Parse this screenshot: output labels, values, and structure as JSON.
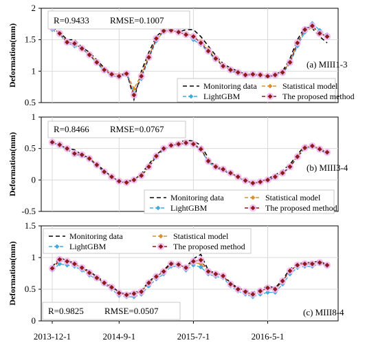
{
  "colors": {
    "monitoring": "#000000",
    "lightgbm": "#3fa9e0",
    "statistical": "#d9902a",
    "proposed": "#8b1a1a",
    "proposed_halo": "#f2b6f0",
    "grid": "#d9d9d9"
  },
  "x_axis": {
    "ticks": [
      "2013-12-1",
      "2014-9-1",
      "2015-7-1",
      "2016-5-1"
    ],
    "tick_index": [
      0,
      9,
      19,
      29
    ]
  },
  "chart_data": [
    {
      "type": "line",
      "panel_label": "(a) MIII1-3",
      "ylabel": "Deformation(mm)",
      "stats": {
        "r": "R=0.9433",
        "rmse": "RMSE=0.1007"
      },
      "ylim": [
        0.5,
        2
      ],
      "yticks": [
        "0.5",
        "1",
        "1.5",
        "2"
      ],
      "ytick_values": [
        0.5,
        1,
        1.5,
        2
      ],
      "legend": [
        "Monitoring data",
        "Statistical model",
        "LightGBM",
        "The proposed method"
      ],
      "legend_position": "bottom-right",
      "series": [
        {
          "name": "Monitoring data",
          "values": [
            1.7,
            1.62,
            1.5,
            1.5,
            1.38,
            1.3,
            1.18,
            1.05,
            0.97,
            0.9,
            1.0,
            0.55,
            1.0,
            1.3,
            1.55,
            1.66,
            1.66,
            1.62,
            1.66,
            1.66,
            1.55,
            1.4,
            1.25,
            1.12,
            1.05,
            1.0,
            0.95,
            0.92,
            0.95,
            0.88,
            0.95,
            1.0,
            1.2,
            1.5,
            1.7,
            1.68,
            1.55,
            1.45
          ]
        },
        {
          "name": "Statistical model",
          "values": [
            1.68,
            1.6,
            1.48,
            1.42,
            1.35,
            1.27,
            1.15,
            1.03,
            0.96,
            0.95,
            0.97,
            0.72,
            0.95,
            1.25,
            1.5,
            1.62,
            1.64,
            1.62,
            1.6,
            1.56,
            1.48,
            1.35,
            1.22,
            1.1,
            1.02,
            0.98,
            0.95,
            0.96,
            0.95,
            0.92,
            0.95,
            0.98,
            1.15,
            1.42,
            1.62,
            1.7,
            1.62,
            1.55
          ]
        },
        {
          "name": "LightGBM",
          "values": [
            1.66,
            1.58,
            1.45,
            1.4,
            1.36,
            1.25,
            1.13,
            1.0,
            0.93,
            0.9,
            0.95,
            0.65,
            0.88,
            1.2,
            1.48,
            1.63,
            1.65,
            1.63,
            1.58,
            1.5,
            1.42,
            1.3,
            1.18,
            1.08,
            1.0,
            0.96,
            0.93,
            0.94,
            0.93,
            0.9,
            0.93,
            0.96,
            1.12,
            1.4,
            1.62,
            1.76,
            1.65,
            1.58
          ]
        },
        {
          "name": "The proposed method",
          "values": [
            1.7,
            1.6,
            1.46,
            1.44,
            1.36,
            1.26,
            1.14,
            1.02,
            0.95,
            0.92,
            0.96,
            0.62,
            0.92,
            1.22,
            1.52,
            1.64,
            1.65,
            1.62,
            1.58,
            1.55,
            1.45,
            1.32,
            1.2,
            1.08,
            1.02,
            0.98,
            0.94,
            0.95,
            0.94,
            0.92,
            0.94,
            0.98,
            1.14,
            1.45,
            1.66,
            1.72,
            1.6,
            1.55
          ]
        }
      ]
    },
    {
      "type": "line",
      "panel_label": "(b) MIII3-4",
      "ylabel": "Deformation(mm)",
      "stats": {
        "r": "R=0.8466",
        "rmse": "RMSE=0.0767"
      },
      "ylim": [
        -0.5,
        1
      ],
      "yticks": [
        "-0.5",
        "0",
        "0.5",
        "1"
      ],
      "ytick_values": [
        -0.5,
        0,
        0.5,
        1
      ],
      "legend": [
        "Monitoring data",
        "Statistical model",
        "LightGBM",
        "The proposed method"
      ],
      "legend_position": "bottom-right",
      "series": [
        {
          "name": "Monitoring data",
          "values": [
            0.6,
            0.55,
            0.5,
            0.48,
            0.4,
            0.35,
            0.25,
            0.15,
            0.05,
            -0.05,
            -0.02,
            0.0,
            0.1,
            0.25,
            0.4,
            0.5,
            0.55,
            0.6,
            0.63,
            0.62,
            0.55,
            0.35,
            0.2,
            0.15,
            0.1,
            0.05,
            0.0,
            -0.05,
            -0.03,
            0.02,
            0.08,
            0.15,
            0.25,
            0.4,
            0.55,
            0.55,
            0.48,
            0.42
          ]
        },
        {
          "name": "Statistical model",
          "values": [
            0.6,
            0.55,
            0.5,
            0.42,
            0.4,
            0.35,
            0.25,
            0.12,
            0.05,
            -0.02,
            -0.05,
            0.0,
            0.08,
            0.22,
            0.38,
            0.5,
            0.55,
            0.58,
            0.6,
            0.58,
            0.5,
            0.3,
            0.22,
            0.18,
            0.12,
            0.05,
            0.0,
            -0.05,
            -0.03,
            0.0,
            0.05,
            0.12,
            0.22,
            0.38,
            0.52,
            0.55,
            0.5,
            0.45
          ]
        },
        {
          "name": "LightGBM",
          "values": [
            0.58,
            0.55,
            0.48,
            0.4,
            0.38,
            0.33,
            0.22,
            0.12,
            0.05,
            -0.02,
            -0.04,
            0.0,
            0.06,
            0.2,
            0.36,
            0.48,
            0.54,
            0.56,
            0.58,
            0.56,
            0.48,
            0.28,
            0.2,
            0.16,
            0.1,
            0.04,
            -0.02,
            -0.06,
            -0.04,
            -0.01,
            0.04,
            0.1,
            0.2,
            0.36,
            0.5,
            0.53,
            0.48,
            0.43
          ]
        },
        {
          "name": "The proposed method",
          "values": [
            0.6,
            0.56,
            0.5,
            0.42,
            0.4,
            0.34,
            0.24,
            0.13,
            0.05,
            -0.02,
            -0.04,
            0.0,
            0.07,
            0.21,
            0.38,
            0.5,
            0.55,
            0.57,
            0.59,
            0.57,
            0.49,
            0.3,
            0.21,
            0.17,
            0.11,
            0.05,
            -0.01,
            -0.05,
            -0.03,
            0.0,
            0.05,
            0.11,
            0.21,
            0.37,
            0.51,
            0.54,
            0.49,
            0.44
          ]
        }
      ]
    },
    {
      "type": "line",
      "panel_label": "(c) MIII8-4",
      "ylabel": "Deformation(mm)",
      "stats": {
        "r": "R=0.9825",
        "rmse": "RMSE=0.0507"
      },
      "ylim": [
        0,
        1.5
      ],
      "yticks": [
        "0",
        "0.5",
        "1",
        "1.5"
      ],
      "ytick_values": [
        0,
        0.5,
        1,
        1.5
      ],
      "legend": [
        "Monitoring data",
        "Statistical model",
        "LightGBM",
        "The proposed method"
      ],
      "legend_position": "top-left",
      "series": [
        {
          "name": "Monitoring data",
          "values": [
            0.85,
            1.0,
            0.95,
            0.92,
            0.85,
            0.78,
            0.7,
            0.62,
            0.55,
            0.45,
            0.42,
            0.45,
            0.48,
            0.62,
            0.72,
            0.8,
            0.92,
            0.9,
            0.85,
            0.98,
            1.05,
            0.8,
            0.75,
            0.72,
            0.6,
            0.52,
            0.48,
            0.45,
            0.5,
            0.55,
            0.52,
            0.65,
            0.82,
            0.9,
            0.92,
            0.92,
            0.95,
            0.88
          ]
        },
        {
          "name": "Statistical model",
          "values": [
            0.82,
            0.95,
            0.93,
            0.9,
            0.83,
            0.76,
            0.68,
            0.6,
            0.53,
            0.44,
            0.41,
            0.43,
            0.47,
            0.6,
            0.7,
            0.78,
            0.9,
            0.88,
            0.84,
            0.92,
            0.9,
            0.78,
            0.73,
            0.7,
            0.58,
            0.5,
            0.45,
            0.4,
            0.46,
            0.52,
            0.5,
            0.63,
            0.78,
            0.88,
            0.9,
            0.9,
            0.92,
            0.88
          ]
        },
        {
          "name": "LightGBM",
          "values": [
            0.8,
            0.9,
            0.88,
            0.86,
            0.8,
            0.72,
            0.66,
            0.58,
            0.5,
            0.4,
            0.38,
            0.38,
            0.42,
            0.55,
            0.66,
            0.74,
            0.86,
            0.86,
            0.8,
            0.88,
            0.85,
            0.74,
            0.7,
            0.68,
            0.55,
            0.47,
            0.42,
            0.38,
            0.42,
            0.45,
            0.45,
            0.58,
            0.74,
            0.84,
            0.86,
            0.86,
            0.9,
            0.86
          ]
        },
        {
          "name": "The proposed method",
          "values": [
            0.83,
            0.97,
            0.94,
            0.9,
            0.84,
            0.76,
            0.68,
            0.6,
            0.53,
            0.44,
            0.41,
            0.43,
            0.46,
            0.6,
            0.7,
            0.78,
            0.9,
            0.89,
            0.84,
            0.94,
            0.96,
            0.78,
            0.74,
            0.71,
            0.58,
            0.5,
            0.46,
            0.42,
            0.47,
            0.52,
            0.5,
            0.63,
            0.79,
            0.88,
            0.9,
            0.9,
            0.92,
            0.88
          ]
        }
      ]
    }
  ]
}
